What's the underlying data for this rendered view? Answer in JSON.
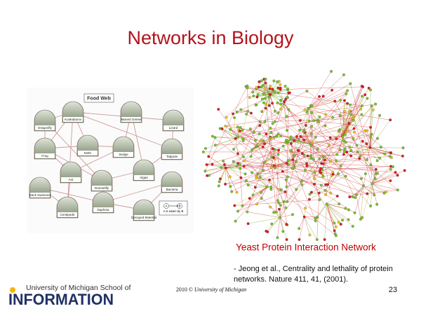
{
  "title": "Networks in Biology",
  "food_web": {
    "title": "Food Web",
    "nodes": [
      "Dragonfly",
      "Kookaburra",
      "Maned Geese",
      "Lizard",
      "Moth",
      "Sedge",
      "Tadpole",
      "Frog",
      "Ant",
      "Algae",
      "Damselfly",
      "Back Swimmer",
      "Bacteria",
      "Daphnia",
      "Centipede",
      "Decayed Material"
    ],
    "legend": {
      "a": "A",
      "b": "B",
      "caption": "A is eaten by B"
    }
  },
  "network_caption": "Yeast Protein Interaction Network",
  "citation": [
    "- Jeong et al., Centrality and lethality of protein",
    "networks. Nature 411, 41, (2001)."
  ],
  "footer": {
    "school": "University of Michigan School of",
    "brand": "INFORMATION",
    "copyright_prefix": "2010 ©",
    "copyright_name": "University of Michigan",
    "page": "23"
  }
}
